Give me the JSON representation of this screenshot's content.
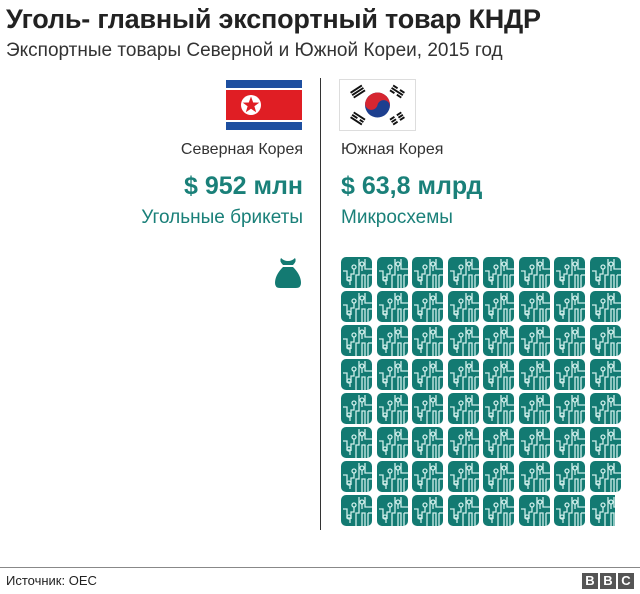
{
  "header": {
    "title": "Уголь- главный экспортный товар КНДР",
    "subtitle": "Экспортные товары Северной и Южной Кореи, 2015 год"
  },
  "left": {
    "country": "Северная Корея",
    "value": "$ 952 млн",
    "product": "Угольные брикеты",
    "icon": "money-sack-icon",
    "icon_count": 1
  },
  "right": {
    "country": "Южная Корея",
    "value": "$ 63,8 млрд",
    "product": "Микросхемы",
    "icon": "microchip-icon",
    "icon_count": 63.8
  },
  "colors": {
    "accent": "#1a8079",
    "icon_fill": "#137a72",
    "icon_trace": "#cfeeea",
    "nk_blue": "#1e4fa0",
    "nk_red": "#e01e24",
    "sk_red": "#d62631",
    "sk_blue": "#1d3f8f"
  },
  "footer": {
    "source": "Источник: OEC",
    "logo": [
      "B",
      "B",
      "C"
    ]
  },
  "chart_data": {
    "type": "pictogram",
    "title": "Уголь- главный экспортный товар КНДР",
    "subtitle": "Экспортные товары Северной и Южной Кореи, 2015 год",
    "unit": "1 icon = $1 млрд",
    "categories": [
      "Северная Корея",
      "Южная Корея"
    ],
    "products": [
      "Угольные брикеты",
      "Микросхемы"
    ],
    "values_usd_billion": [
      0.952,
      63.8
    ],
    "labels": [
      "$ 952 млн",
      "$ 63,8 млрд"
    ],
    "grid": {
      "columns": 8,
      "rows": 8
    },
    "source": "OEC"
  }
}
